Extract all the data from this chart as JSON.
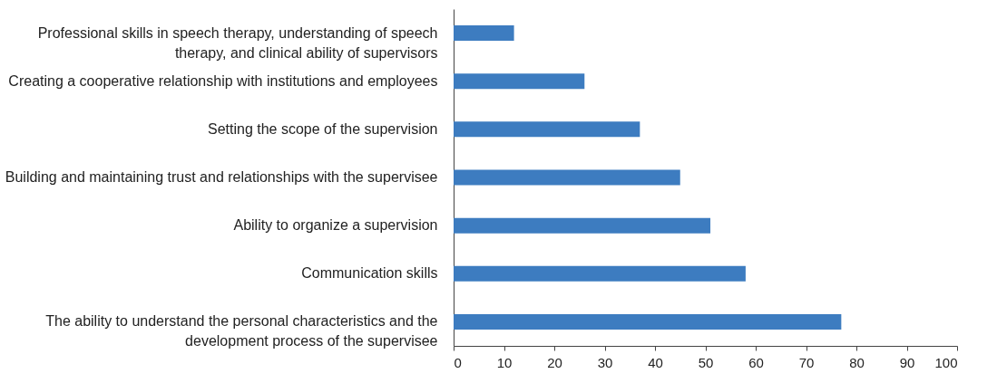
{
  "chart_data": {
    "type": "bar",
    "orientation": "horizontal",
    "categories": [
      "Professional skills in speech therapy, understanding of speech therapy, and clinical ability of supervisors",
      "Creating a cooperative relationship with institutions and employees",
      "Setting the scope of the supervision",
      "Building and maintaining trust and relationships with the supervisee",
      "Ability to organize a supervision",
      "Communication skills",
      "The ability to understand the personal characteristics and the development process of the supervisee"
    ],
    "values": [
      12,
      26,
      37,
      45,
      51,
      58,
      77
    ],
    "color": "#3d7cc0",
    "xlim": [
      0,
      100
    ],
    "xticks": [
      0,
      10,
      20,
      30,
      40,
      50,
      60,
      70,
      80,
      90,
      100
    ],
    "grid": false
  }
}
